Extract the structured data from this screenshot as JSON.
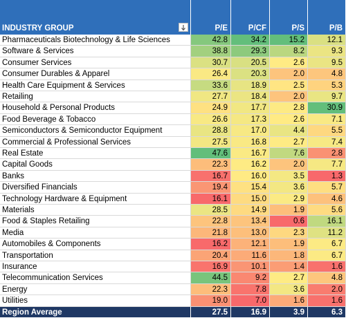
{
  "table": {
    "columns": [
      "INDUSTRY GROUP",
      "P/E",
      "P/CF",
      "P/S",
      "P/B"
    ],
    "rows": [
      [
        "Pharmaceuticals Biotechnology & Life Sciences",
        "42.8",
        "34.2",
        "15.2",
        "12.1"
      ],
      [
        "Software & Services",
        "38.8",
        "29.3",
        "8.2",
        "9.3"
      ],
      [
        "Consumer Services",
        "30.7",
        "20.5",
        "2.6",
        "9.5"
      ],
      [
        "Consumer Durables & Apparel",
        "26.4",
        "20.3",
        "2.0",
        "4.8"
      ],
      [
        "Health Care Equipment & Services",
        "33.6",
        "18.9",
        "2.5",
        "5.3"
      ],
      [
        "Retailing",
        "27.7",
        "18.4",
        "2.0",
        "9.7"
      ],
      [
        "Household & Personal Products",
        "24.9",
        "17.7",
        "2.8",
        "30.9"
      ],
      [
        "Food Beverage & Tobacco",
        "26.6",
        "17.3",
        "2.6",
        "7.1"
      ],
      [
        "Semiconductors & Semiconductor Equipment",
        "28.8",
        "17.0",
        "4.4",
        "5.5"
      ],
      [
        "Commercial & Professional Services",
        "27.5",
        "16.8",
        "2.7",
        "7.4"
      ],
      [
        "Real Estate",
        "47.6",
        "16.7",
        "7.6",
        "2.8"
      ],
      [
        "Capital Goods",
        "22.3",
        "16.2",
        "2.0",
        "7.7"
      ],
      [
        "Banks",
        "16.7",
        "16.0",
        "3.5",
        "1.3"
      ],
      [
        "Diversified Financials",
        "19.4",
        "15.4",
        "3.6",
        "5.7"
      ],
      [
        "Technology Hardware & Equipment",
        "16.1",
        "15.0",
        "2.9",
        "4.6"
      ],
      [
        "Materials",
        "28.5",
        "14.9",
        "1.9",
        "5.6"
      ],
      [
        "Food & Staples Retailing",
        "22.8",
        "13.4",
        "0.6",
        "16.1"
      ],
      [
        "Media",
        "21.8",
        "13.0",
        "2.3",
        "11.2"
      ],
      [
        "Automobiles & Components",
        "16.2",
        "12.1",
        "1.9",
        "6.7"
      ],
      [
        "Transportation",
        "20.4",
        "11.6",
        "1.8",
        "6.7"
      ],
      [
        "Insurance",
        "16.9",
        "10.1",
        "1.4",
        "1.6"
      ],
      [
        "Telecommunication Services",
        "44.5",
        "9.2",
        "2.7",
        "4.8"
      ],
      [
        "Energy",
        "22.3",
        "7.8",
        "3.6",
        "2.0"
      ],
      [
        "Utilities",
        "19.0",
        "7.0",
        "1.6",
        "1.6"
      ]
    ],
    "footer": [
      "Region Average",
      "27.5",
      "16.9",
      "3.9",
      "6.3"
    ]
  }
}
